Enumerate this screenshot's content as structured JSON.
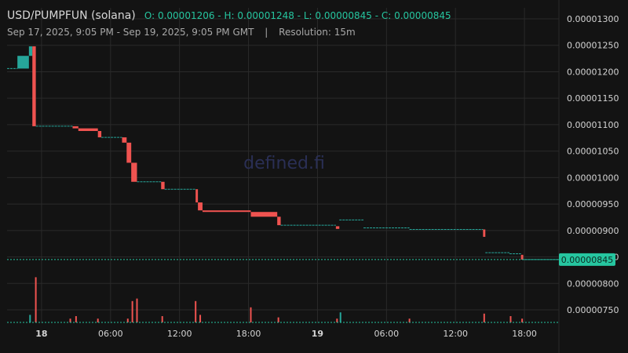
{
  "header": {
    "symbol": "USD/PUMPFUN (solana)",
    "ohlc_text": "O: 0.00001206 - H: 0.00001248 - L: 0.00000845 - C: 0.00000845",
    "range": "Sep 17, 2025, 9:05 PM - Sep 19, 2025, 9:05 PM GMT",
    "separator": "|",
    "resolution": "Resolution: 15m"
  },
  "watermark": "defined.fi",
  "colors": {
    "up": "#26a69a",
    "down": "#ef5350",
    "price_line": "#26c6a0",
    "grid": "#2a2a2a",
    "background": "#131313"
  },
  "last_price_tag": "0.00000845",
  "chart_data": {
    "type": "candlestick",
    "y_ticks": [
      "0.00001300",
      "0.00001250",
      "0.00001200",
      "0.00001150",
      "0.00001100",
      "0.00001050",
      "0.00001000",
      "0.00000950",
      "0.00000900",
      "0.00000850",
      "0.00000800",
      "0.00000750"
    ],
    "ylim": [
      7.25e-06,
      1.31e-05
    ],
    "x_ticks": [
      {
        "label": "18",
        "hours": 3,
        "bold": true
      },
      {
        "label": "06:00",
        "hours": 9,
        "bold": false
      },
      {
        "label": "12:00",
        "hours": 15,
        "bold": false
      },
      {
        "label": "18:00",
        "hours": 21,
        "bold": false
      },
      {
        "label": "19",
        "hours": 27,
        "bold": true
      },
      {
        "label": "06:00",
        "hours": 33,
        "bold": false
      },
      {
        "label": "12:00",
        "hours": 39,
        "bold": false
      },
      {
        "label": "18:00",
        "hours": 45,
        "bold": false
      }
    ],
    "x_axis_start": "Sep 17, 2025, 9:05 PM GMT",
    "xlim_hours": [
      0,
      48
    ],
    "last_price": 8.45e-06,
    "segments": [
      [
        0.0,
        0.9,
        1.206e-05,
        1.206e-05
      ],
      [
        0.9,
        1.9,
        1.206e-05,
        1.23e-05
      ],
      [
        1.9,
        2.2,
        1.23e-05,
        1.248e-05
      ],
      [
        2.2,
        2.5,
        1.248e-05,
        1.097e-05
      ],
      [
        2.5,
        5.7,
        1.097e-05,
        1.097e-05
      ],
      [
        5.7,
        6.2,
        1.097e-05,
        1.093e-05
      ],
      [
        6.2,
        7.9,
        1.093e-05,
        1.088e-05
      ],
      [
        7.9,
        8.2,
        1.088e-05,
        1.076e-05
      ],
      [
        8.2,
        10.0,
        1.076e-05,
        1.076e-05
      ],
      [
        10.0,
        10.4,
        1.076e-05,
        1.066e-05
      ],
      [
        10.4,
        10.8,
        1.066e-05,
        1.028e-05
      ],
      [
        10.8,
        11.3,
        1.028e-05,
        9.92e-06
      ],
      [
        11.3,
        13.4,
        9.92e-06,
        9.92e-06
      ],
      [
        13.4,
        13.7,
        9.92e-06,
        9.78e-06
      ],
      [
        13.7,
        16.4,
        9.78e-06,
        9.78e-06
      ],
      [
        16.4,
        16.6,
        9.78e-06,
        9.53e-06
      ],
      [
        16.6,
        17.0,
        9.53e-06,
        9.38e-06
      ],
      [
        17.0,
        21.2,
        9.38e-06,
        9.35e-06
      ],
      [
        21.2,
        23.5,
        9.35e-06,
        9.26e-06
      ],
      [
        23.5,
        23.8,
        9.26e-06,
        9.1e-06
      ],
      [
        23.8,
        28.6,
        9.1e-06,
        9.08e-06
      ],
      [
        28.6,
        28.9,
        9.08e-06,
        9.03e-06
      ],
      [
        28.9,
        31.0,
        9.2e-06,
        9.2e-06
      ],
      [
        31.0,
        35.0,
        9.05e-06,
        9.03e-06
      ],
      [
        35.0,
        41.4,
        9.02e-06,
        9.02e-06
      ],
      [
        41.4,
        41.6,
        9.02e-06,
        8.88e-06
      ],
      [
        41.6,
        43.7,
        8.58e-06,
        8.56e-06
      ],
      [
        43.7,
        44.7,
        8.56e-06,
        8.54e-06
      ],
      [
        44.7,
        44.9,
        8.54e-06,
        8.45e-06
      ],
      [
        44.9,
        48.0,
        8.45e-06,
        8.45e-06
      ]
    ],
    "volume_spikes": [
      [
        2.0,
        0.6,
        "up"
      ],
      [
        2.5,
        3.6,
        "down"
      ],
      [
        5.5,
        0.3,
        "down"
      ],
      [
        6.0,
        0.5,
        "down"
      ],
      [
        7.9,
        0.3,
        "down"
      ],
      [
        10.5,
        0.3,
        "down"
      ],
      [
        10.9,
        1.7,
        "down"
      ],
      [
        11.3,
        1.9,
        "down"
      ],
      [
        13.5,
        0.5,
        "down"
      ],
      [
        16.4,
        1.7,
        "down"
      ],
      [
        16.8,
        0.6,
        "down"
      ],
      [
        21.2,
        1.2,
        "down"
      ],
      [
        23.6,
        0.4,
        "down"
      ],
      [
        28.7,
        0.3,
        "down"
      ],
      [
        29.0,
        0.8,
        "up"
      ],
      [
        35.0,
        0.3,
        "down"
      ],
      [
        41.5,
        0.7,
        "down"
      ],
      [
        43.8,
        0.5,
        "down"
      ],
      [
        44.8,
        0.3,
        "down"
      ]
    ]
  }
}
